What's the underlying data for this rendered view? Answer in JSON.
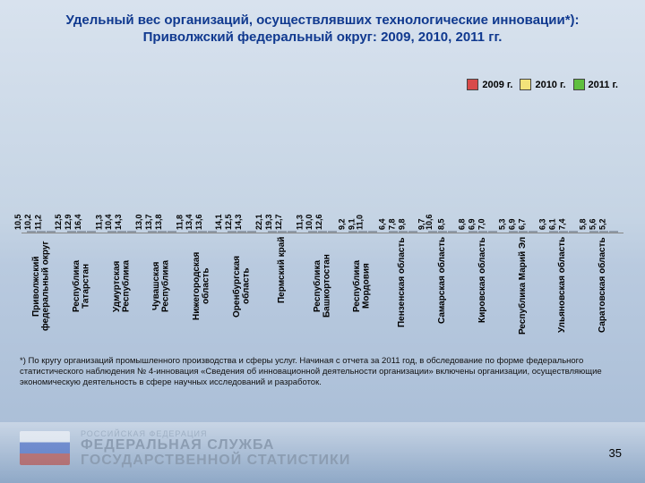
{
  "title": "Удельный вес организаций, осуществлявших технологические инновации*): Приволжский федеральный округ: 2009, 2010, 2011 гг.",
  "legend": [
    {
      "label": "2009 г.",
      "color": "#d84a4a"
    },
    {
      "label": "2010 г.",
      "color": "#f2e37a"
    },
    {
      "label": "2011 г.",
      "color": "#5fbf3f"
    }
  ],
  "chart": {
    "ymax": 24,
    "bar_colors": [
      "#d84a4a",
      "#f2e37a",
      "#5fbf3f"
    ],
    "groups": [
      {
        "label": "Приволжский федеральный округ",
        "v": [
          10.5,
          10.2,
          11.2
        ]
      },
      {
        "label": "Республика Татарстан",
        "v": [
          12.5,
          12.9,
          16.4
        ]
      },
      {
        "label": "Удмуртская Республика",
        "v": [
          11.3,
          10.4,
          14.3
        ]
      },
      {
        "label": "Чувашская Республика",
        "v": [
          13.0,
          13.7,
          13.8
        ]
      },
      {
        "label": "Нижегородская область",
        "v": [
          11.8,
          13.4,
          13.6
        ]
      },
      {
        "label": "Оренбургская область",
        "v": [
          14.1,
          12.5,
          14.3
        ]
      },
      {
        "label": "Пермский край",
        "v": [
          22.1,
          19.3,
          12.7
        ]
      },
      {
        "label": "Республика Башкортостан",
        "v": [
          11.3,
          10.0,
          12.6
        ]
      },
      {
        "label": "Республика Мордовия",
        "v": [
          9.2,
          9.1,
          11.0
        ]
      },
      {
        "label": "Пензенская область",
        "v": [
          6.4,
          7.8,
          9.8
        ]
      },
      {
        "label": "Самарская область",
        "v": [
          9.7,
          10.6,
          8.5
        ]
      },
      {
        "label": "Кировская область",
        "v": [
          6.8,
          6.9,
          7.0
        ]
      },
      {
        "label": "Республика Марий Эл",
        "v": [
          5.3,
          6.9,
          6.7
        ]
      },
      {
        "label": "Ульяновская область",
        "v": [
          6.3,
          6.1,
          7.4
        ]
      },
      {
        "label": "Саратовская область",
        "v": [
          5.8,
          5.6,
          5.2
        ]
      }
    ]
  },
  "footnote": "*) По кругу организаций промышленного производства и сферы услуг.\n    Начиная с отчета за 2011 год, в обследование по форме федерального статистического наблюдения № 4-инновация «Сведения об инновационной деятельности организации» включены организации, осуществляющие экономическую деятельность в сфере научных исследований и разработок.",
  "org_l1": "РОССИЙСКАЯ ФЕДЕРАЦИЯ",
  "org_l2a": "ФЕДЕРАЛЬНАЯ СЛУЖБА",
  "org_l2b": "ГОСУДАРСТВЕННОЙ СТАТИСТИКИ",
  "page": "35"
}
